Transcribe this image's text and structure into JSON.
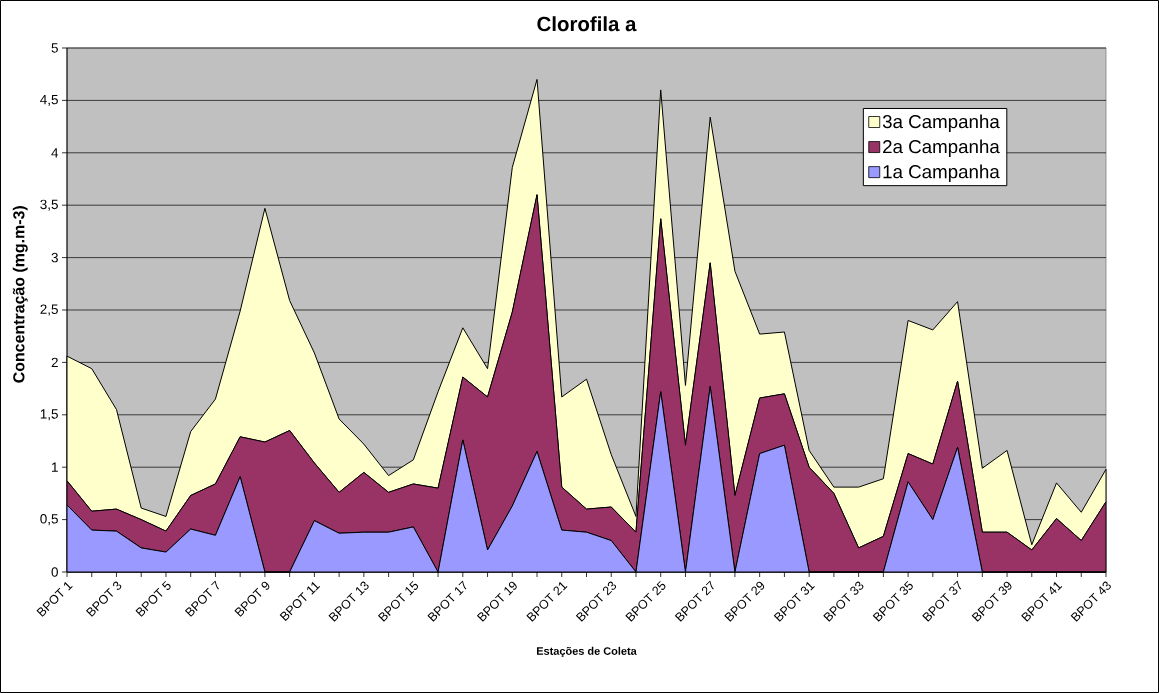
{
  "chart_data": {
    "type": "area",
    "title": "Clorofila a",
    "xlabel": "Estações de Coleta",
    "ylabel": "Concentração (mg.m-3)",
    "categories": [
      "BPOT 1",
      null,
      "BPOT 3",
      null,
      "BPOT 5",
      null,
      "BPOT 7",
      null,
      "BPOT 9",
      null,
      "BPOT 11",
      null,
      "BPOT 13",
      null,
      "BPOT 15",
      null,
      "BPOT 17",
      null,
      "BPOT 19",
      null,
      "BPOT 21",
      null,
      "BPOT 23",
      null,
      "BPOT 25",
      null,
      "BPOT 27",
      null,
      "BPOT 29",
      null,
      "BPOT 31",
      null,
      "BPOT 33",
      null,
      "BPOT 35",
      null,
      "BPOT 37",
      null,
      "BPOT 39",
      null,
      "BPOT 41",
      null,
      "BPOT 43"
    ],
    "stacked": true,
    "series": [
      {
        "name": "1a Campanha",
        "color": "#9999ff",
        "values": [
          0.64,
          0.4,
          0.39,
          0.23,
          0.19,
          0.41,
          0.35,
          0.91,
          0,
          0,
          0.49,
          0.37,
          0.38,
          0.38,
          0.43,
          0,
          1.26,
          0.21,
          0.63,
          1.15,
          0.4,
          0.38,
          0.3,
          0,
          1.72,
          0,
          1.77,
          0,
          1.13,
          1.21,
          0,
          0,
          0,
          0,
          0.86,
          0.5,
          1.19,
          0,
          0,
          0,
          0,
          0,
          0
        ]
      },
      {
        "name": "2a Campanha",
        "color": "#993366",
        "values": [
          0.23,
          0.18,
          0.21,
          0.27,
          0.2,
          0.32,
          0.49,
          0.38,
          1.24,
          1.35,
          0.55,
          0.39,
          0.57,
          0.38,
          0.41,
          0.8,
          0.6,
          1.46,
          1.85,
          2.45,
          0.41,
          0.22,
          0.32,
          0.38,
          1.65,
          1.21,
          1.18,
          0.73,
          0.53,
          0.49,
          1.0,
          0.75,
          0.23,
          0.34,
          0.27,
          0.53,
          0.63,
          0.38,
          0.38,
          0.21,
          0.51,
          0.3,
          0.67
        ]
      },
      {
        "name": "3a Campanha",
        "color": "#ffffcc",
        "values": [
          1.19,
          1.36,
          0.95,
          0.11,
          0.14,
          0.61,
          0.81,
          1.2,
          2.23,
          1.24,
          1.05,
          0.7,
          0.27,
          0.16,
          0.23,
          0.92,
          0.47,
          0.27,
          1.38,
          1.1,
          0.86,
          1.24,
          0.5,
          0.15,
          1.23,
          0.57,
          1.39,
          2.14,
          0.61,
          0.59,
          0.16,
          0.06,
          0.58,
          0.55,
          1.27,
          1.28,
          0.76,
          0.61,
          0.78,
          0.05,
          0.34,
          0.27,
          0.31
        ]
      }
    ],
    "ylim": [
      0,
      5
    ],
    "yticks": [
      0,
      {
        "value": 0.5,
        "label": "0,5"
      },
      1,
      {
        "value": 1.5,
        "label": "1,5"
      },
      2,
      {
        "value": 2.5,
        "label": "2,5"
      },
      3,
      {
        "value": 3.5,
        "label": "3,5"
      },
      4,
      {
        "value": 4.5,
        "label": "4,5"
      },
      5
    ],
    "grid": "y",
    "legend": "top right"
  }
}
